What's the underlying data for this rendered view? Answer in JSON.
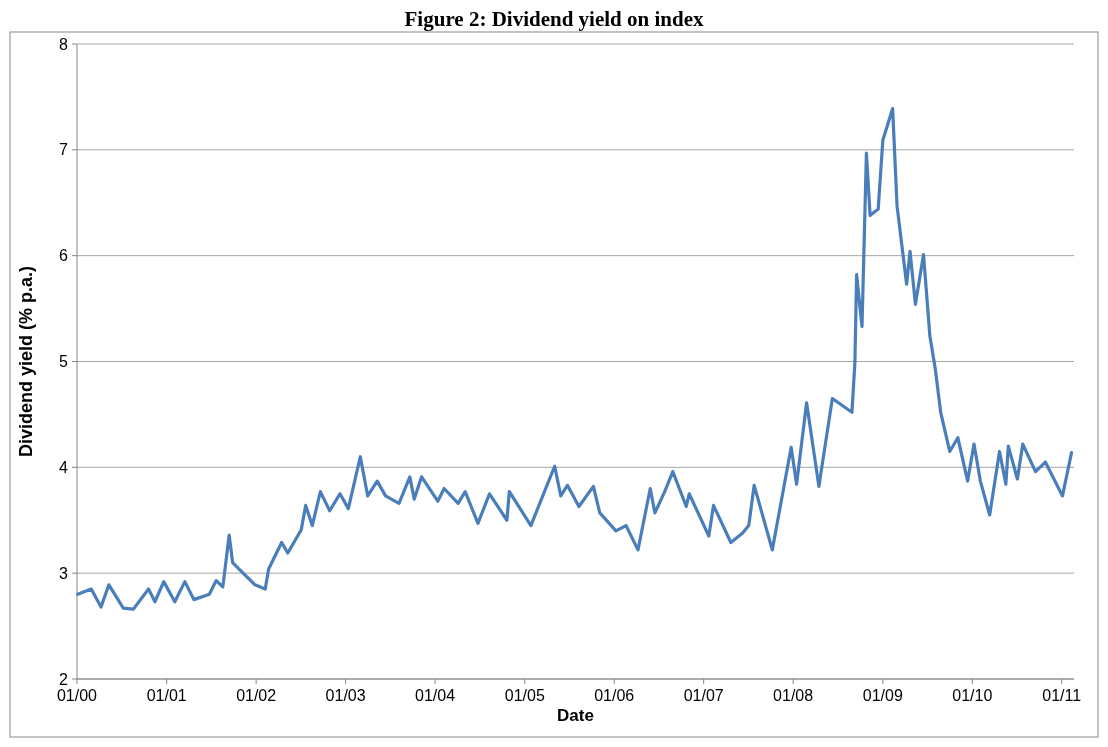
{
  "chart_data": {
    "type": "line",
    "title": "Figure 2: Dividend yield on index",
    "xlabel": "Date",
    "ylabel": "Dividend yield (% p.a.)",
    "x": [
      "2000-01-04",
      "2000-02-28",
      "2000-04-08",
      "2000-05-10",
      "2000-07-08",
      "2000-08-18",
      "2000-10-19",
      "2000-11-14",
      "2000-12-20",
      "2001-02-03",
      "2001-03-16",
      "2001-04-22",
      "2001-06-24",
      "2001-07-22",
      "2001-08-18",
      "2001-09-13",
      "2001-09-27",
      "2001-11-18",
      "2001-12-27",
      "2002-02-07",
      "2002-02-21",
      "2002-04-15",
      "2002-05-10",
      "2002-07-04",
      "2002-07-22",
      "2002-08-18",
      "2002-09-20",
      "2002-10-28",
      "2002-12-09",
      "2003-01-12",
      "2003-03-02",
      "2003-04-01",
      "2003-05-10",
      "2003-06-13",
      "2003-08-07",
      "2003-09-20",
      "2003-10-08",
      "2003-11-07",
      "2004-01-12",
      "2004-02-07",
      "2004-04-04",
      "2004-05-03",
      "2004-06-24",
      "2004-08-10",
      "2004-10-20",
      "2004-10-30",
      "2005-01-26",
      "2005-03-24",
      "2005-05-03",
      "2005-05-28",
      "2005-06-24",
      "2005-08-10",
      "2005-10-08",
      "2005-11-03",
      "2006-01-08",
      "2006-02-18",
      "2006-04-08",
      "2006-05-28",
      "2006-06-16",
      "2006-07-26",
      "2006-08-28",
      "2006-10-22",
      "2006-11-03",
      "2007-01-22",
      "2007-02-10",
      "2007-04-22",
      "2007-06-09",
      "2007-07-04",
      "2007-07-26",
      "2007-10-08",
      "2007-12-24",
      "2008-01-15",
      "2008-02-25",
      "2008-04-15",
      "2008-06-09",
      "2008-08-28",
      "2008-09-09",
      "2008-09-16",
      "2008-10-08",
      "2008-10-26",
      "2008-11-10",
      "2008-12-13",
      "2009-01-01",
      "2009-02-10",
      "2009-02-28",
      "2009-04-08",
      "2009-04-22",
      "2009-05-14",
      "2009-06-16",
      "2009-07-12",
      "2009-08-03",
      "2009-08-25",
      "2009-10-01",
      "2009-11-03",
      "2009-12-13",
      "2010-01-08",
      "2010-02-03",
      "2010-03-13",
      "2010-04-22",
      "2010-05-18",
      "2010-05-28",
      "2010-07-04",
      "2010-07-26",
      "2010-09-16",
      "2010-10-26",
      "2011-01-04",
      "2011-02-10"
    ],
    "series": [
      {
        "color": "#4a7ebb",
        "values": [
          2.8,
          2.85,
          2.68,
          2.89,
          2.67,
          2.66,
          2.85,
          2.73,
          2.92,
          2.73,
          2.92,
          2.75,
          2.8,
          2.93,
          2.87,
          3.36,
          3.1,
          2.98,
          2.89,
          2.85,
          3.04,
          3.29,
          3.19,
          3.41,
          3.64,
          3.45,
          3.77,
          3.59,
          3.75,
          3.61,
          4.1,
          3.73,
          3.87,
          3.73,
          3.66,
          3.91,
          3.7,
          3.91,
          3.68,
          3.8,
          3.66,
          3.77,
          3.47,
          3.75,
          3.5,
          3.77,
          3.45,
          3.78,
          4.01,
          3.73,
          3.83,
          3.63,
          3.82,
          3.57,
          3.4,
          3.45,
          3.22,
          3.8,
          3.57,
          3.77,
          3.96,
          3.63,
          3.75,
          3.35,
          3.64,
          3.29,
          3.38,
          3.45,
          3.83,
          3.22,
          4.19,
          3.84,
          4.61,
          3.82,
          4.65,
          4.52,
          4.99,
          5.82,
          5.33,
          6.97,
          6.38,
          6.44,
          7.09,
          7.39,
          6.47,
          5.73,
          6.04,
          5.54,
          6.01,
          5.24,
          4.93,
          4.52,
          4.15,
          4.28,
          3.87,
          4.22,
          3.87,
          3.55,
          4.15,
          3.84,
          4.2,
          3.89,
          4.22,
          3.96,
          4.05,
          3.73,
          4.14
        ]
      }
    ],
    "xlim": [
      "2000-01-01",
      "2011-02-20"
    ],
    "xticks": [
      {
        "value": "2000-01-01",
        "label": "01/00"
      },
      {
        "value": "2001-01-01",
        "label": "01/01"
      },
      {
        "value": "2002-01-01",
        "label": "01/02"
      },
      {
        "value": "2003-01-01",
        "label": "01/03"
      },
      {
        "value": "2004-01-01",
        "label": "01/04"
      },
      {
        "value": "2005-01-01",
        "label": "01/05"
      },
      {
        "value": "2006-01-01",
        "label": "01/06"
      },
      {
        "value": "2007-01-01",
        "label": "01/07"
      },
      {
        "value": "2008-01-01",
        "label": "01/08"
      },
      {
        "value": "2009-01-01",
        "label": "01/09"
      },
      {
        "value": "2010-01-01",
        "label": "01/10"
      },
      {
        "value": "2011-01-01",
        "label": "01/11"
      }
    ],
    "ylim": [
      2,
      8
    ],
    "yticks": [
      2,
      3,
      4,
      5,
      6,
      7,
      8
    ],
    "grid": "y",
    "marker": "none",
    "line_style": "solid"
  }
}
